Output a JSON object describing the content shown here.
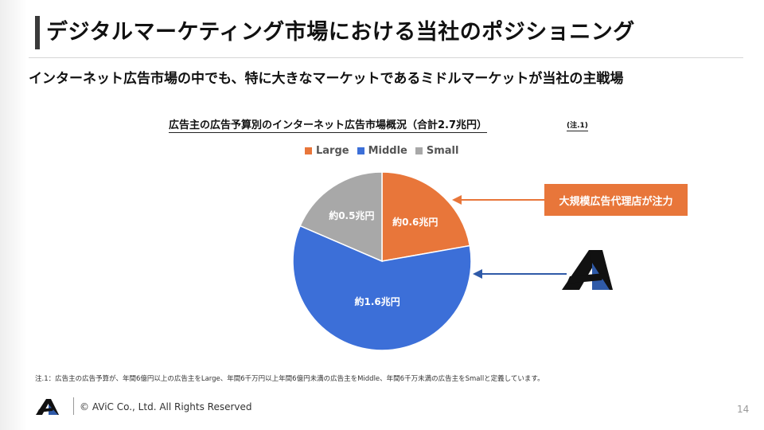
{
  "slide": {
    "title": "デジタルマーケティング市場における当社のポジショニング",
    "subtitle": "インターネット広告市場の中でも、特に大きなマーケットであるミドルマーケットが当社の主戦場",
    "chart_note": "(注.1)",
    "callout_text": "大規模広告代理店が注力",
    "footnote": "注.1：広告主の広告予算が、年間6億円以上の広告主をLarge、年間6千万円以上年間6億円未満の広告主をMiddle、年間6千万未満の広告主をSmallと定義しています。",
    "copyright": "© AViC Co., Ltd. All Rights Reserved",
    "page_number": "14",
    "logo_icon": "avic-logo-icon"
  },
  "chart_data": {
    "type": "pie",
    "title": "広告主の広告予算別のインターネット広告市場概況（合計2.7兆円）",
    "categories": [
      "Large",
      "Middle",
      "Small"
    ],
    "values": [
      0.6,
      1.6,
      0.5
    ],
    "unit": "兆円",
    "labels": [
      "約0.6兆円",
      "約1.6兆円",
      "約0.5兆円"
    ],
    "colors": [
      "#e8763a",
      "#3c6fd8",
      "#a8a8a8"
    ],
    "legend_position": "top"
  }
}
